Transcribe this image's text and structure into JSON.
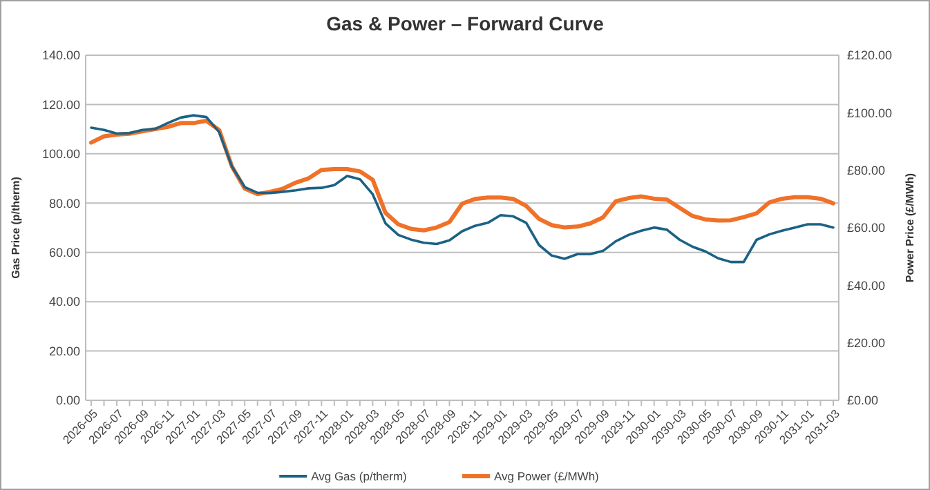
{
  "chart_data": {
    "type": "line",
    "title": "Gas & Power – Forward Curve",
    "ylabel": "Gas Price (p/therm)",
    "y2label": "Power Price (£/MWh)",
    "categories": [
      "2026-05",
      null,
      "2026-07",
      null,
      "2026-09",
      null,
      "2026-11",
      null,
      "2027-01",
      null,
      "2027-03",
      null,
      "2027-05",
      null,
      "2027-07",
      null,
      "2027-09",
      null,
      "2027-11",
      null,
      "2028-01",
      null,
      "2028-03",
      null,
      "2028-05",
      null,
      "2028-07",
      null,
      "2028-09",
      null,
      "2028-11",
      null,
      "2029-01",
      null,
      "2029-03",
      null,
      "2029-05",
      null,
      "2029-07",
      null,
      "2029-09",
      null,
      "2029-11",
      null,
      "2030-01",
      null,
      "2030-03",
      null,
      "2030-05",
      null,
      "2030-07",
      null,
      "2030-09",
      null,
      "2030-11",
      null,
      "2031-01",
      null,
      "2031-03"
    ],
    "series": [
      {
        "name": "Avg Gas (p/therm)",
        "color": "#1b6285",
        "values": [
          110.6,
          109.7,
          108.2,
          108.4,
          109.7,
          110.1,
          112.5,
          114.7,
          115.6,
          114.9,
          108.8,
          94.8,
          86.5,
          84.2,
          84.1,
          84.6,
          85.2,
          86.0,
          86.2,
          87.3,
          91,
          89.7,
          83.6,
          71.8,
          67.1,
          65.2,
          63.9,
          63.4,
          64.9,
          68.6,
          70.8,
          72,
          75.1,
          74.6,
          72,
          63,
          58.7,
          57.4,
          59.3,
          59.3,
          60.6,
          64.5,
          67.1,
          68.8,
          70.1,
          69.2,
          65.1,
          62.3,
          60.4,
          57.6,
          56.1,
          56.1,
          65.1,
          67.3,
          68.8,
          70.1,
          71.4,
          71.4,
          70.1
        ]
      },
      {
        "name": "Avg Power (£/MWh)",
        "color": "#f07128",
        "axis": "y2",
        "values": [
          89.6,
          91.8,
          92.4,
          92.7,
          93.5,
          94.3,
          95.1,
          96.4,
          96.4,
          97.2,
          94,
          81.3,
          73.6,
          71.7,
          72.5,
          73.6,
          75.7,
          77.2,
          80.1,
          80.4,
          80.4,
          79.6,
          76.7,
          65.2,
          61.2,
          59.6,
          59.1,
          60.1,
          62,
          68.4,
          70,
          70.5,
          70.5,
          70,
          67.6,
          63.1,
          60.9,
          60.1,
          60.4,
          61.5,
          63.6,
          69.2,
          70.3,
          70.9,
          70.1,
          69.8,
          66.9,
          64.1,
          62.9,
          62.5,
          62.6,
          63.7,
          65,
          68.8,
          70.1,
          70.6,
          70.6,
          70.1,
          68.5
        ]
      }
    ],
    "ylim": [
      0,
      140
    ],
    "yticks": [
      {
        "value": 0,
        "label": "0.00"
      },
      {
        "value": 20,
        "label": "20.00"
      },
      {
        "value": 40,
        "label": "40.00"
      },
      {
        "value": 60,
        "label": "60.00"
      },
      {
        "value": 80,
        "label": "80.00"
      },
      {
        "value": 100,
        "label": "100.00"
      },
      {
        "value": 120,
        "label": "120.00"
      },
      {
        "value": 140,
        "label": "140.00"
      }
    ],
    "y2lim": [
      0,
      120
    ],
    "y2ticks": [
      {
        "value": 0,
        "label": "£0.00"
      },
      {
        "value": 20,
        "label": "£20.00"
      },
      {
        "value": 40,
        "label": "£40.00"
      },
      {
        "value": 60,
        "label": "£60.00"
      },
      {
        "value": 80,
        "label": "£80.00"
      },
      {
        "value": 100,
        "label": "£100.00"
      },
      {
        "value": 120,
        "label": "£120.00"
      }
    ],
    "grid": "y",
    "legend": "bottom",
    "marker": "none",
    "line_style": "solid"
  }
}
